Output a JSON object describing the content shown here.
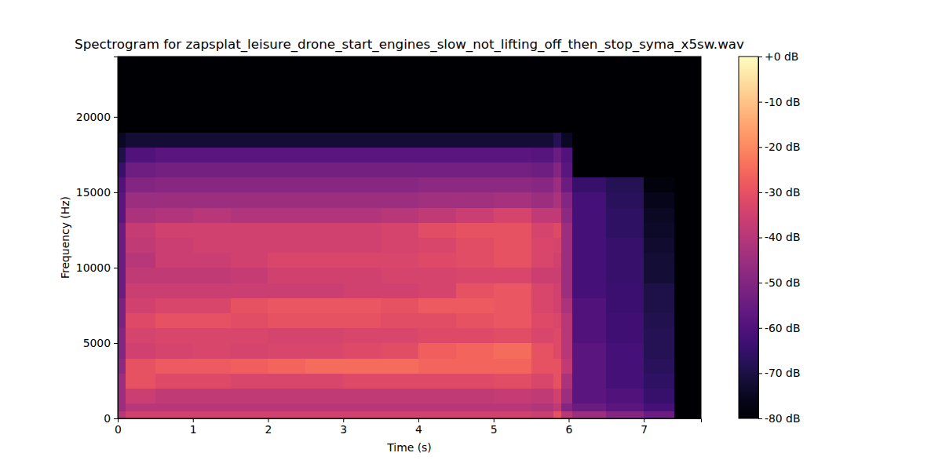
{
  "chart_data": {
    "type": "heatmap",
    "title": "Spectrogram for zapsplat_leisure_drone_start_engines_slow_not_lifting_off_then_stop_syma_x5sw.wav",
    "x_label": "Time (s)",
    "y_label": "Frequency (Hz)",
    "color": "magma",
    "xlim": [
      0,
      7.76
    ],
    "ylim": [
      0,
      24000
    ],
    "xticks": [
      0,
      1,
      2,
      3,
      4,
      5,
      6,
      7
    ],
    "yticks": [
      0,
      5000,
      10000,
      15000,
      20000
    ],
    "x_edges": [
      0,
      0.1,
      0.5,
      1,
      1.5,
      2,
      2.5,
      3,
      3.5,
      4,
      4.5,
      5,
      5.5,
      5.8,
      5.9,
      6.05,
      6.5,
      7,
      7.4,
      7.76
    ],
    "y_edges": [
      0,
      500,
      1000,
      2000,
      3000,
      4000,
      5000,
      6000,
      7000,
      8000,
      9000,
      10000,
      11000,
      12000,
      13000,
      14000,
      15000,
      16000,
      17000,
      18000,
      19000,
      24000
    ],
    "z": [
      [
        -40,
        -45,
        -45,
        -45,
        -48,
        -50,
        -50,
        -52,
        -52,
        -55,
        -55,
        -55,
        -55,
        -55,
        -58,
        -58,
        -60,
        -65,
        -70,
        -75,
        -80
      ],
      [
        -35,
        -40,
        -36,
        -30,
        -30,
        -35,
        -34,
        -32,
        -35,
        -36,
        -38,
        -40,
        -38,
        -37,
        -42,
        -45,
        -50,
        -54,
        -60,
        -72,
        -80
      ],
      [
        -35,
        -40,
        -38,
        -32,
        -28,
        -34,
        -33,
        -30,
        -33,
        -36,
        -38,
        -36,
        -36,
        -35,
        -41,
        -45,
        -49,
        -53,
        -58,
        -72,
        -80
      ],
      [
        -35,
        -40,
        -38,
        -32,
        -28,
        -33,
        -33,
        -30,
        -33,
        -36,
        -38,
        -36,
        -35,
        -35,
        -40,
        -45,
        -49,
        -53,
        -58,
        -72,
        -80
      ],
      [
        -35,
        -40,
        -38,
        -33,
        -27,
        -34,
        -33,
        -31,
        -30,
        -36,
        -37,
        -35,
        -35,
        -35,
        -41,
        -45,
        -49,
        -53,
        -58,
        -72,
        -80
      ],
      [
        -35,
        -40,
        -38,
        -33,
        -26,
        -33,
        -34,
        -30,
        -29,
        -36,
        -35,
        -33,
        -35,
        -35,
        -41,
        -45,
        -49,
        -53,
        -58,
        -72,
        -80
      ],
      [
        -35,
        -40,
        -38,
        -33,
        -25,
        -33,
        -34,
        -30,
        -29,
        -36,
        -35,
        -33,
        -35,
        -35,
        -41,
        -45,
        -49,
        -53,
        -58,
        -72,
        -80
      ],
      [
        -35,
        -40,
        -38,
        -32,
        -25,
        -32,
        -33,
        -30,
        -29,
        -35,
        -35,
        -33,
        -35,
        -35,
        -41,
        -45,
        -49,
        -53,
        -58,
        -72,
        -80
      ],
      [
        -35,
        -40,
        -38,
        -32,
        -25,
        -31,
        -33,
        -31,
        -30,
        -35,
        -34,
        -33,
        -34,
        -34,
        -40,
        -45,
        -49,
        -53,
        -58,
        -72,
        -80
      ],
      [
        -35,
        -40,
        -38,
        -32,
        -26,
        -27,
        -32,
        -31,
        -28,
        -34,
        -34,
        -32,
        -33,
        -31,
        -38,
        -44,
        -48,
        -53,
        -58,
        -72,
        -80
      ],
      [
        -35,
        -40,
        -38,
        -32,
        -26,
        -26,
        -32,
        -30,
        -28,
        -30,
        -33,
        -31,
        -31,
        -30,
        -36,
        -44,
        -48,
        -53,
        -58,
        -72,
        -80
      ],
      [
        -35,
        -40,
        -37,
        -31,
        -26,
        -25,
        -31,
        -29,
        -29,
        -29,
        -33,
        -30,
        -30,
        -30,
        -34,
        -43,
        -48,
        -53,
        -58,
        -72,
        -80
      ],
      [
        -36,
        -41,
        -38,
        -33,
        -30,
        -30,
        -33,
        -32,
        -33,
        -33,
        -36,
        -33,
        -33,
        -34,
        -38,
        -45,
        -49,
        -54,
        -59,
        -72,
        -80
      ],
      [
        -30,
        -38,
        -35,
        -30,
        -30,
        -32,
        -32,
        -33,
        -35,
        -35,
        -36,
        -35,
        -34,
        -32,
        -38,
        -42,
        -45,
        -50,
        -55,
        -68,
        -80
      ],
      [
        -40,
        -50,
        -45,
        -42,
        -38,
        -40,
        -40,
        -40,
        -42,
        -45,
        -45,
        -45,
        -45,
        -45,
        -48,
        -50,
        -55,
        -58,
        -60,
        -75,
        -80
      ],
      [
        -45,
        -55,
        -58,
        -58,
        -58,
        -58,
        -60,
        -60,
        -60,
        -62,
        -62,
        -62,
        -62,
        -62,
        -62,
        -62,
        -65,
        -80,
        -80,
        -80,
        -80
      ],
      [
        -50,
        -58,
        -60,
        -62,
        -62,
        -62,
        -63,
        -63,
        -64,
        -64,
        -65,
        -65,
        -65,
        -66,
        -66,
        -67,
        -68,
        -80,
        -80,
        -80,
        -80
      ],
      [
        -55,
        -62,
        -65,
        -66,
        -67,
        -68,
        -68,
        -69,
        -70,
        -70,
        -72,
        -72,
        -73,
        -74,
        -75,
        -76,
        -78,
        -80,
        -80,
        -80,
        -80
      ],
      [
        -80,
        -80,
        -80,
        -80,
        -80,
        -80,
        -80,
        -80,
        -80,
        -80,
        -80,
        -80,
        -80,
        -80,
        -80,
        -80,
        -80,
        -80,
        -80,
        -80,
        -80
      ]
    ],
    "colorbar": {
      "range": [
        -80,
        0
      ],
      "ticks": [
        {
          "value": 0,
          "label": "+0 dB"
        },
        {
          "value": -10,
          "label": "-10 dB"
        },
        {
          "value": -20,
          "label": "-20 dB"
        },
        {
          "value": -30,
          "label": "-30 dB"
        },
        {
          "value": -40,
          "label": "-40 dB"
        },
        {
          "value": -50,
          "label": "-50 dB"
        },
        {
          "value": -60,
          "label": "-60 dB"
        },
        {
          "value": -70,
          "label": "-70 dB"
        },
        {
          "value": -80,
          "label": "-80 dB"
        }
      ]
    }
  }
}
